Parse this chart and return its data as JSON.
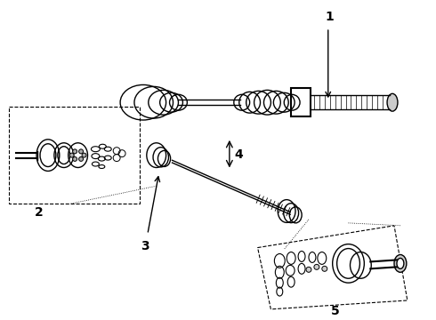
{
  "bg_color": "#ffffff",
  "line_color": "#000000",
  "lw": 1.0,
  "label_1": "1",
  "label_2": "2",
  "label_3": "3",
  "label_4": "4",
  "label_5": "5",
  "label_fontsize": 10,
  "figsize": [
    4.9,
    3.6
  ],
  "dpi": 100
}
